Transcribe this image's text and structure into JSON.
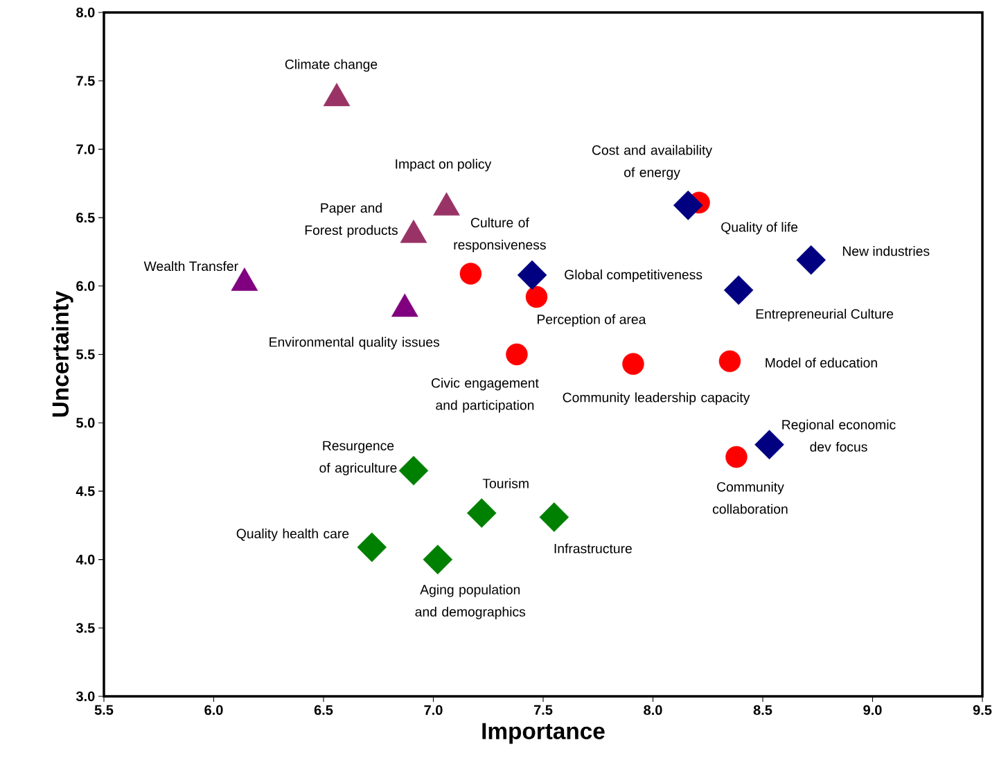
{
  "chart_data": {
    "type": "scatter",
    "xlabel": "Importance",
    "ylabel": "Uncertainty",
    "xlim": [
      5.5,
      9.5
    ],
    "ylim": [
      3.0,
      8.0
    ],
    "xticks": [
      5.5,
      {
        "value": 6,
        "label": "6.0"
      },
      6.5,
      {
        "value": 7,
        "label": "7.0"
      },
      7.5,
      {
        "value": 8,
        "label": "8.0"
      },
      8.5,
      {
        "value": 9,
        "label": "9.0"
      },
      9.5
    ],
    "yticks": [
      {
        "value": 3,
        "label": "3.0"
      },
      3.5,
      {
        "value": 4,
        "label": "4.0"
      },
      4.5,
      {
        "value": 5,
        "label": "5.0"
      },
      5.5,
      {
        "value": 6,
        "label": "6.0"
      },
      6.5,
      {
        "value": 7,
        "label": "7.0"
      },
      7.5,
      {
        "value": 8,
        "label": "8.0"
      }
    ],
    "grid": false,
    "series": [
      {
        "color": "#ff0000",
        "marker": "circle",
        "x": [
          8.21,
          7.17,
          7.47,
          7.38,
          7.91,
          8.35,
          8.38
        ],
        "values": [
          6.61,
          6.09,
          5.92,
          5.5,
          5.43,
          5.45,
          4.75
        ]
      },
      {
        "color": "#000080",
        "marker": "diamond",
        "x": [
          8.16,
          7.45,
          8.72,
          8.39,
          8.53
        ],
        "values": [
          6.59,
          6.08,
          6.19,
          5.97,
          4.84
        ]
      },
      {
        "color": "#008000",
        "marker": "diamond",
        "x": [
          6.91,
          7.22,
          7.55,
          6.72,
          7.02
        ],
        "values": [
          4.65,
          4.34,
          4.31,
          4.09,
          4.0
        ]
      },
      {
        "color": "#993366",
        "marker": "triangle",
        "x": [
          6.56,
          7.06,
          6.91
        ],
        "values": [
          7.4,
          6.6,
          6.4
        ]
      },
      {
        "color": "#800080",
        "marker": "triangle",
        "x": [
          6.14,
          6.87
        ],
        "values": [
          6.05,
          5.86
        ]
      }
    ],
    "annotations": [
      {
        "text": "Cost and availability of energy",
        "x": 8.21,
        "y": 6.61
      },
      {
        "text": "Culture of responsiveness",
        "x": 7.17,
        "y": 6.09
      },
      {
        "text": "Perception of area",
        "x": 7.47,
        "y": 5.92
      },
      {
        "text": "Civic engagement and participation",
        "x": 7.38,
        "y": 5.5
      },
      {
        "text": "Community leadership capacity",
        "x": 7.91,
        "y": 5.43
      },
      {
        "text": "Model of education",
        "x": 8.35,
        "y": 5.45
      },
      {
        "text": "Community collaboration",
        "x": 8.38,
        "y": 4.75
      },
      {
        "text": "Quality of life",
        "x": 8.16,
        "y": 6.59
      },
      {
        "text": "Global competitiveness",
        "x": 7.45,
        "y": 6.08
      },
      {
        "text": "New industries",
        "x": 8.72,
        "y": 6.19
      },
      {
        "text": "Entrepreneurial Culture",
        "x": 8.39,
        "y": 5.97
      },
      {
        "text": "Regional economic dev focus",
        "x": 8.53,
        "y": 4.84
      },
      {
        "text": "Resurgence of agriculture",
        "x": 6.91,
        "y": 4.65
      },
      {
        "text": "Tourism",
        "x": 7.22,
        "y": 4.34
      },
      {
        "text": "Infrastructure",
        "x": 7.55,
        "y": 4.31
      },
      {
        "text": "Quality health care",
        "x": 6.72,
        "y": 4.09
      },
      {
        "text": "Aging population and demographics",
        "x": 7.02,
        "y": 4.0
      },
      {
        "text": "Climate change",
        "x": 6.56,
        "y": 7.4
      },
      {
        "text": "Impact on policy",
        "x": 7.06,
        "y": 6.6
      },
      {
        "text": "Paper and Forest products",
        "x": 6.91,
        "y": 6.4
      },
      {
        "text": "Wealth Transfer",
        "x": 6.14,
        "y": 6.05
      },
      {
        "text": "Environmental quality issues",
        "x": 6.87,
        "y": 5.86
      }
    ]
  }
}
